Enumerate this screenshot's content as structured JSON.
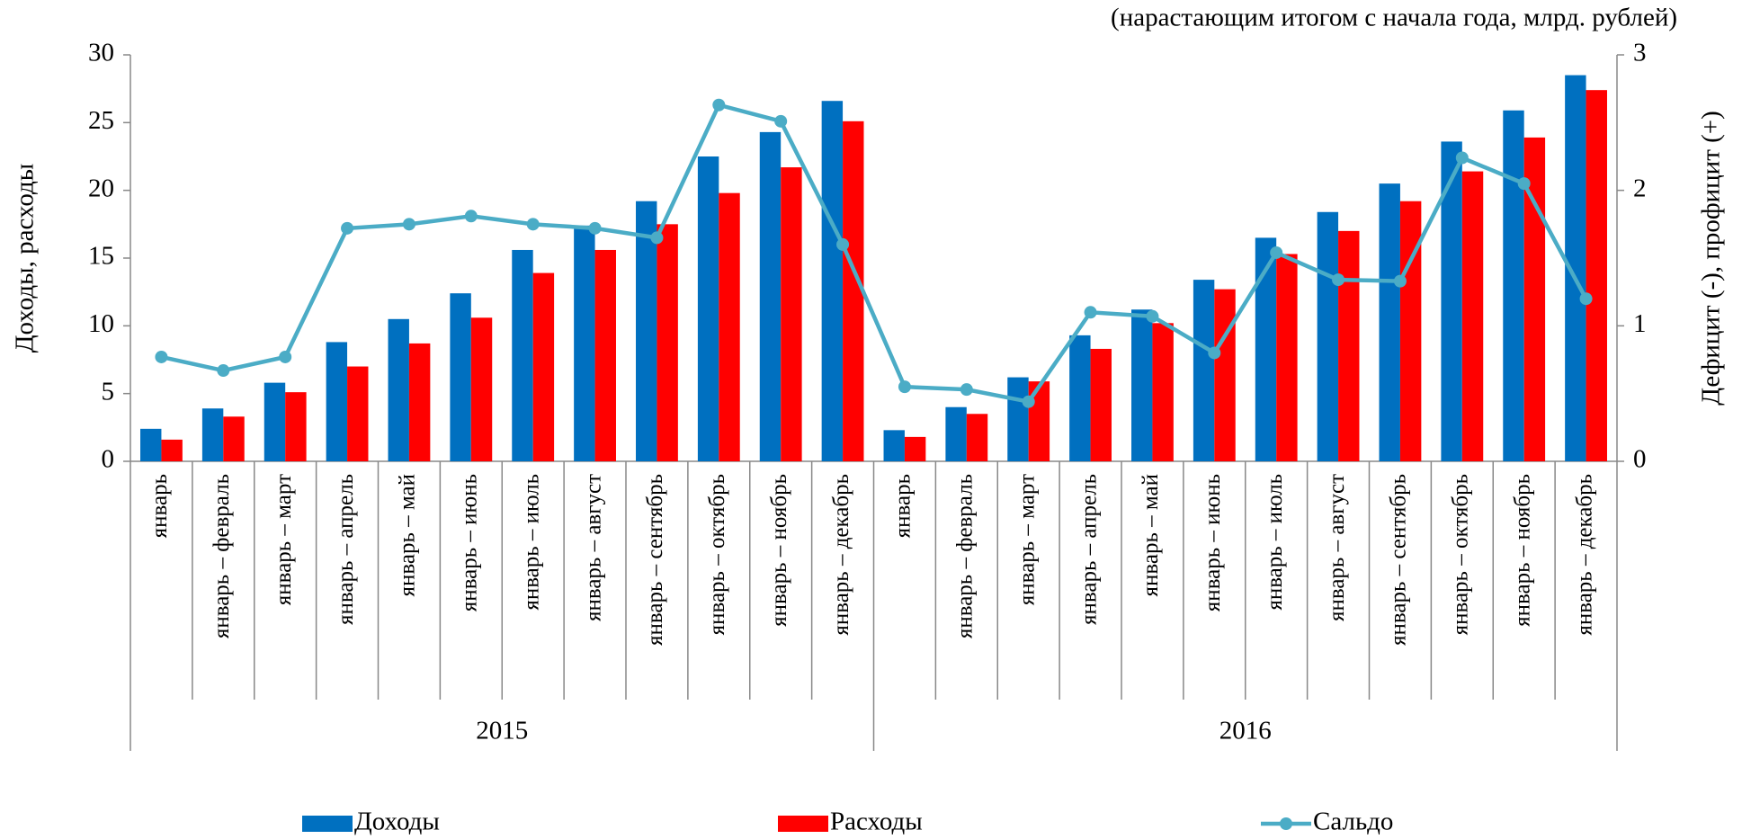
{
  "chart_data": {
    "type": "bar-line",
    "subtitle": "(нарастающим итогом с начала года, млрд. рублей)",
    "y_label": "Доходы, расходы",
    "y2_label": "Дефицит (-), профицит (+)",
    "categories": [
      "январь",
      "январь – февраль",
      "январь – март",
      "январь – апрель",
      "январь – май",
      "январь – июнь",
      "январь – июль",
      "январь – август",
      "январь – сентябрь",
      "январь – октябрь",
      "январь – ноябрь",
      "январь – декабрь",
      "январь",
      "январь – февраль",
      "январь – март",
      "январь – апрель",
      "январь – май",
      "январь – июнь",
      "январь – июль",
      "январь – август",
      "январь – сентябрь",
      "январь – октябрь",
      "январь – ноябрь",
      "январь – декабрь"
    ],
    "category_groups": [
      "2015",
      "2016"
    ],
    "series": [
      {
        "name": "Доходы",
        "type": "bar",
        "color": "#0070c0",
        "values": [
          2.4,
          3.9,
          5.8,
          8.8,
          10.5,
          12.4,
          15.6,
          17.4,
          19.2,
          22.5,
          24.3,
          26.6,
          2.3,
          4.0,
          6.2,
          9.3,
          11.2,
          13.4,
          16.5,
          18.4,
          20.5,
          23.6,
          25.9,
          28.5
        ]
      },
      {
        "name": "Расходы",
        "type": "bar",
        "color": "#ff0000",
        "values": [
          1.6,
          3.3,
          5.1,
          7.0,
          8.7,
          10.6,
          13.9,
          15.6,
          17.5,
          19.8,
          21.7,
          25.1,
          1.8,
          3.5,
          5.9,
          8.3,
          10.2,
          12.7,
          15.3,
          17.0,
          19.2,
          21.4,
          23.9,
          27.4
        ]
      },
      {
        "name": "Сальдо",
        "type": "line",
        "axis": "y2",
        "color": "#4bacc6",
        "values": [
          0.77,
          0.67,
          0.77,
          1.72,
          1.75,
          1.81,
          1.75,
          1.72,
          1.65,
          2.63,
          2.51,
          1.6,
          0.55,
          0.53,
          0.44,
          1.1,
          1.07,
          0.8,
          1.54,
          1.34,
          1.33,
          2.24,
          2.05,
          1.2
        ]
      }
    ],
    "ylim": [
      0,
      30
    ],
    "yticks": [
      0,
      5,
      10,
      15,
      20,
      25,
      30
    ],
    "y2lim": [
      0,
      3
    ],
    "y2ticks": [
      0,
      1,
      2,
      3
    ],
    "grid": false,
    "legend": "bottom"
  }
}
